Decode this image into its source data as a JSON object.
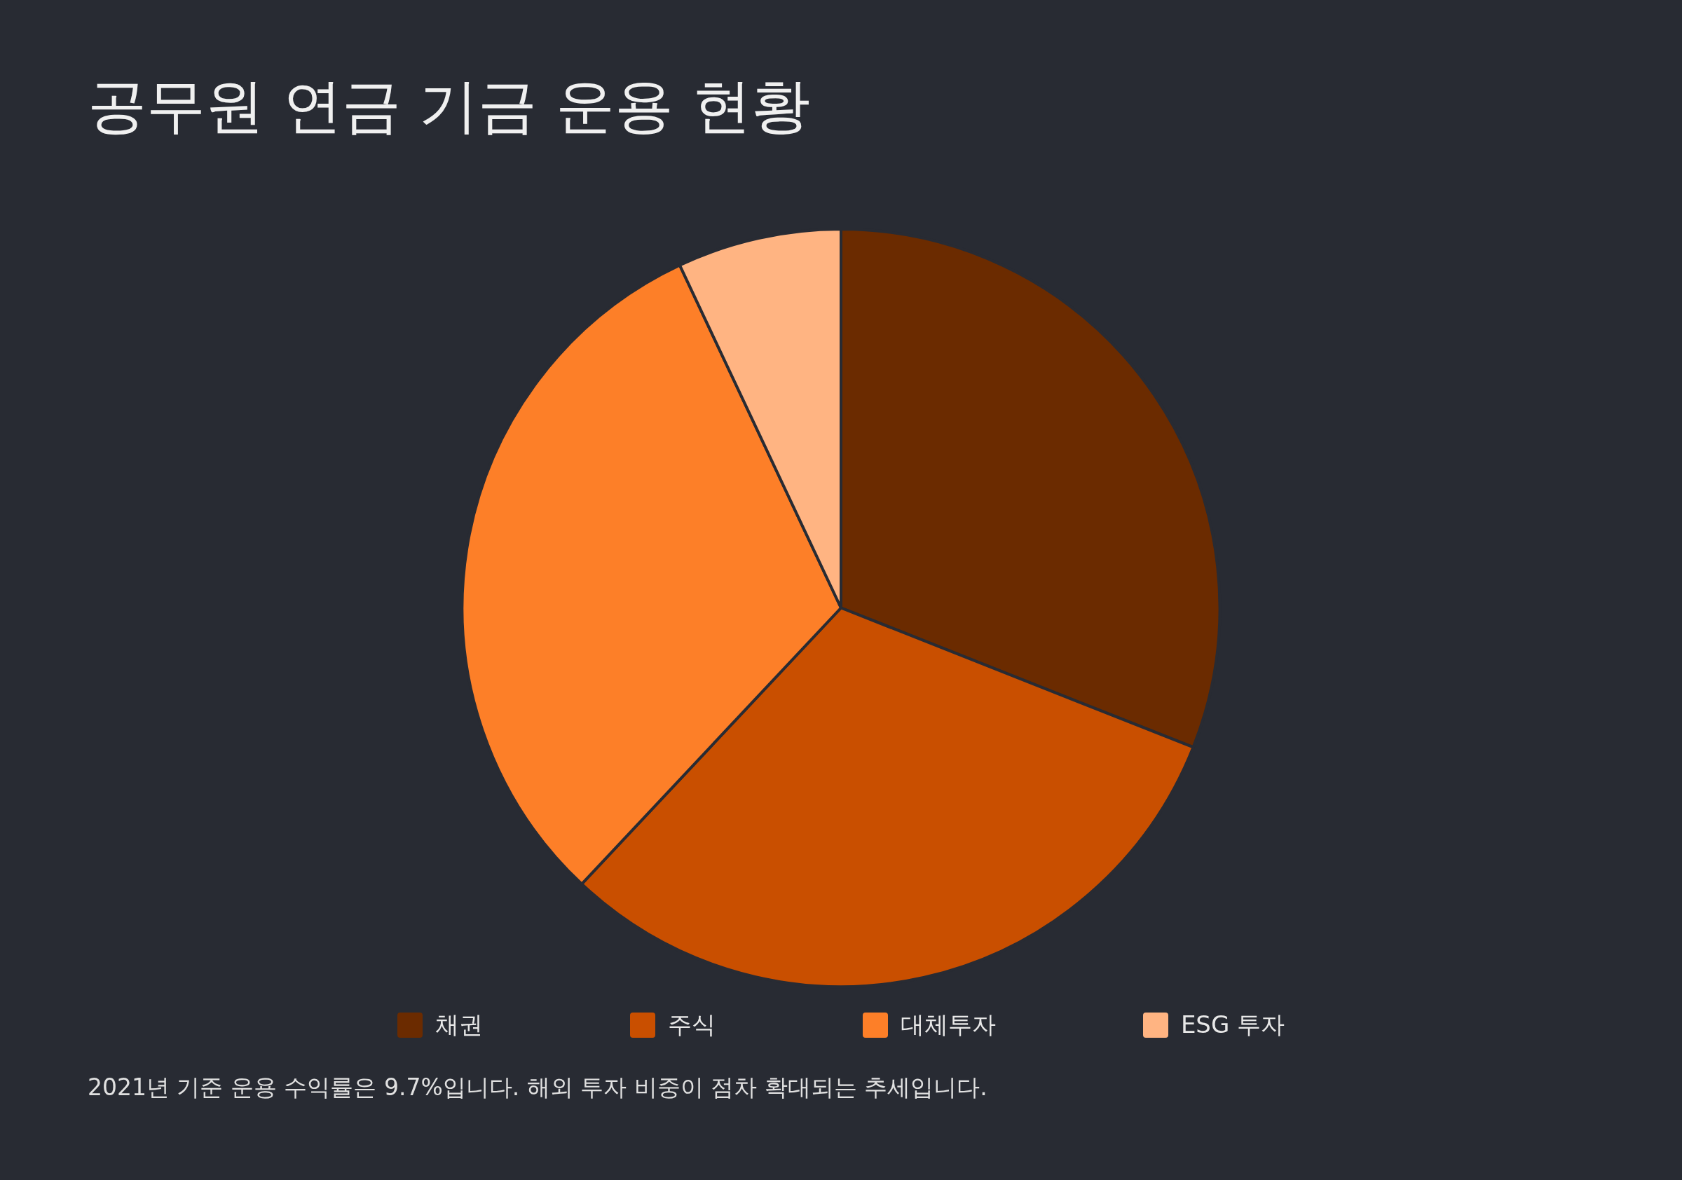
{
  "chart_data": {
    "type": "pie",
    "title": "공무원 연금 기금 운용 현황",
    "categories": [
      "채권",
      "주식",
      "대체투자",
      "ESG 투자"
    ],
    "values": [
      31,
      31,
      31,
      7
    ],
    "colors": [
      "#6b2b00",
      "#c94f00",
      "#fd7f28",
      "#ffb482"
    ],
    "legend": "bottom",
    "annotations": [
      "2021년 기준 운용 수익률은 9.7%입니다. 해외 투자 비중이 점차 확대되는 추세입니다."
    ]
  }
}
